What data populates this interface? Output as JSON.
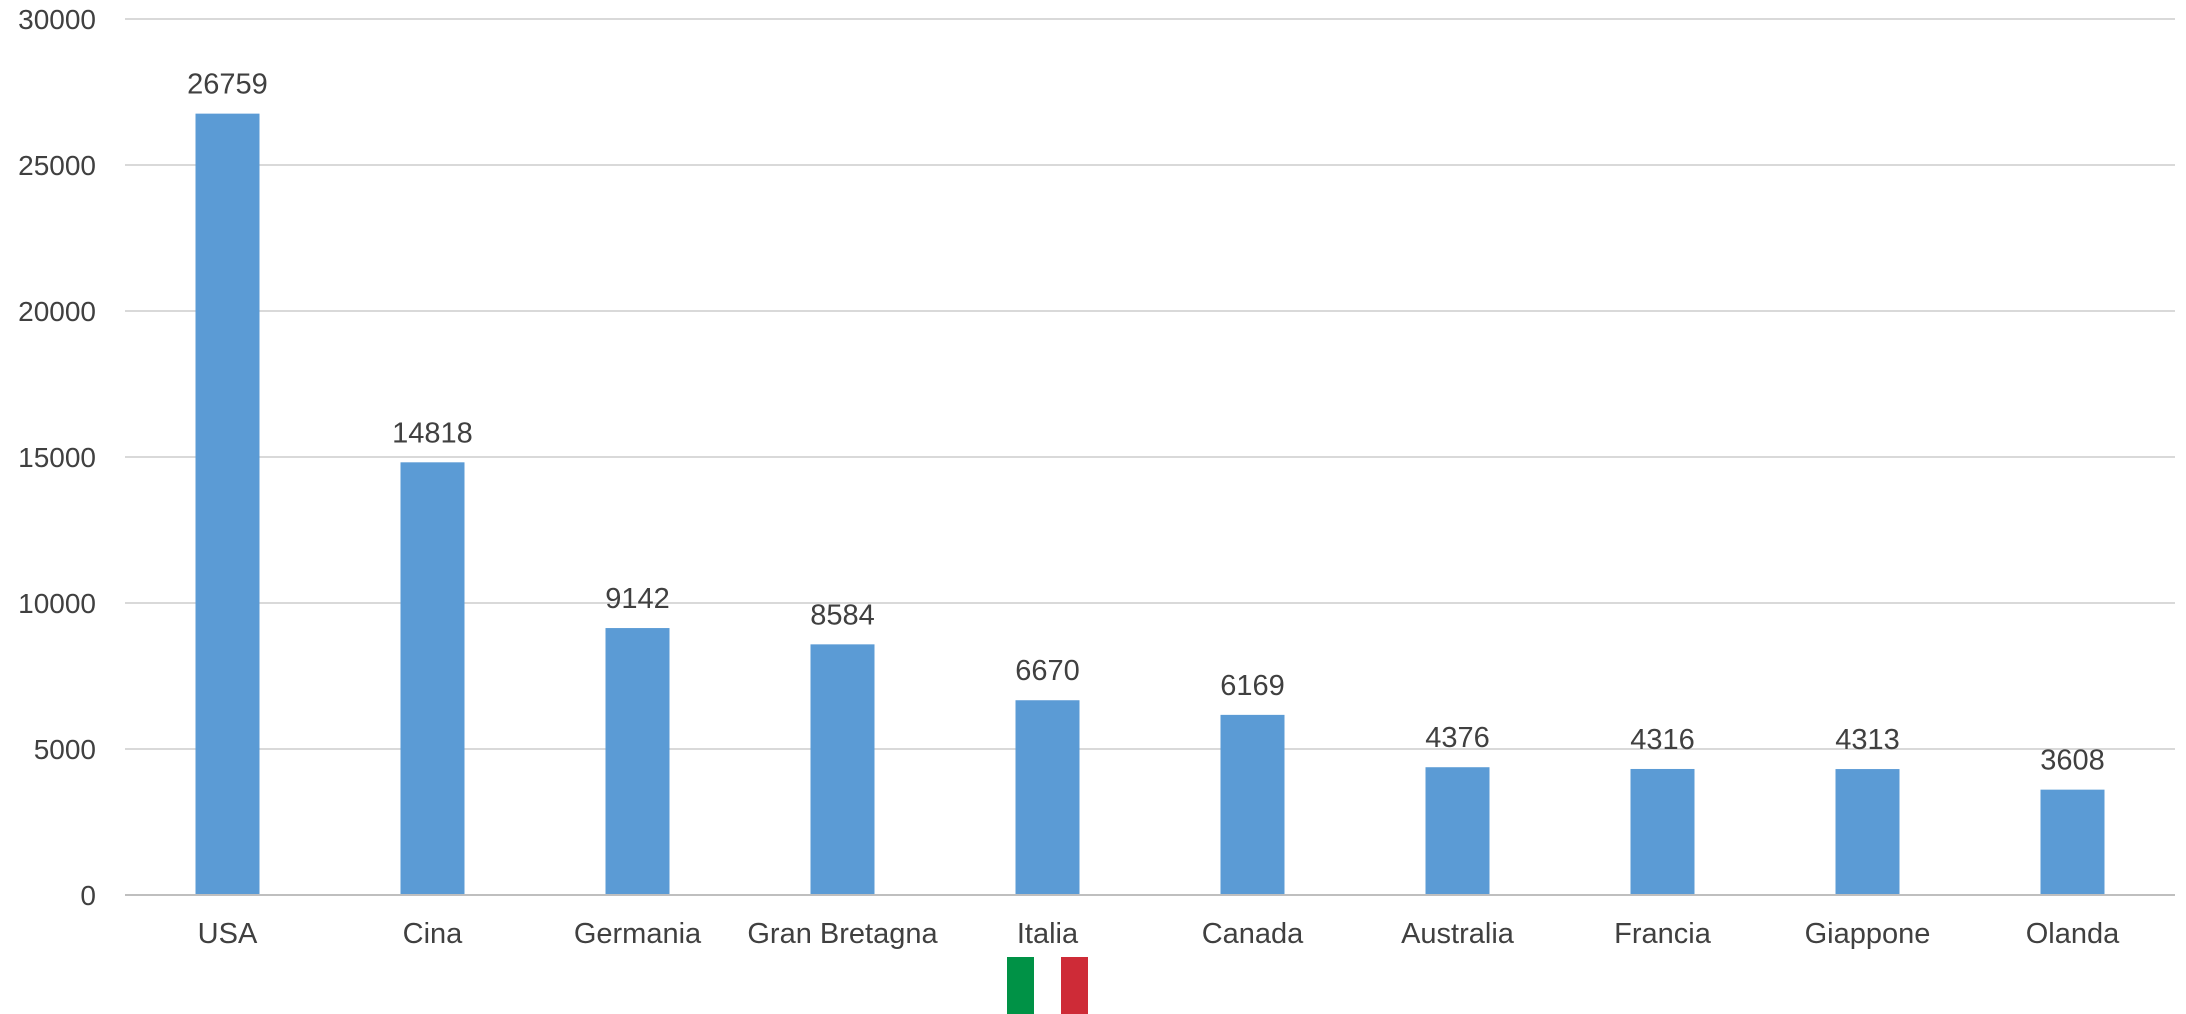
{
  "chart_data": {
    "type": "bar",
    "title": "",
    "xlabel": "",
    "ylabel": "",
    "categories": [
      "USA",
      "Cina",
      "Germania",
      "Gran Bretagna",
      "Italia",
      "Canada",
      "Australia",
      "Francia",
      "Giappone",
      "Olanda"
    ],
    "values": [
      26759,
      14818,
      9142,
      8584,
      6670,
      6169,
      4376,
      4316,
      4313,
      3608
    ],
    "data_labels": [
      "26759",
      "14818",
      "9142",
      "8584",
      "6670",
      "6169",
      "4376",
      "4316",
      "4313",
      "3608"
    ],
    "ylim": [
      0,
      30000
    ],
    "yticks": [
      0,
      5000,
      10000,
      15000,
      20000,
      25000,
      30000
    ],
    "ytick_labels": [
      "0",
      "5000",
      "10000",
      "15000",
      "20000",
      "25000",
      "30000"
    ],
    "grid": true,
    "legend": "none",
    "colors": {
      "bar": "#5b9bd5",
      "grid": "#d9d9d9",
      "axis": "#bfbfbf",
      "text": "#404040"
    },
    "highlight": {
      "category": "Italia",
      "icon": "italy-flag-icon",
      "flag_colors": [
        "#009246",
        "#ffffff",
        "#ce2b37"
      ]
    }
  }
}
